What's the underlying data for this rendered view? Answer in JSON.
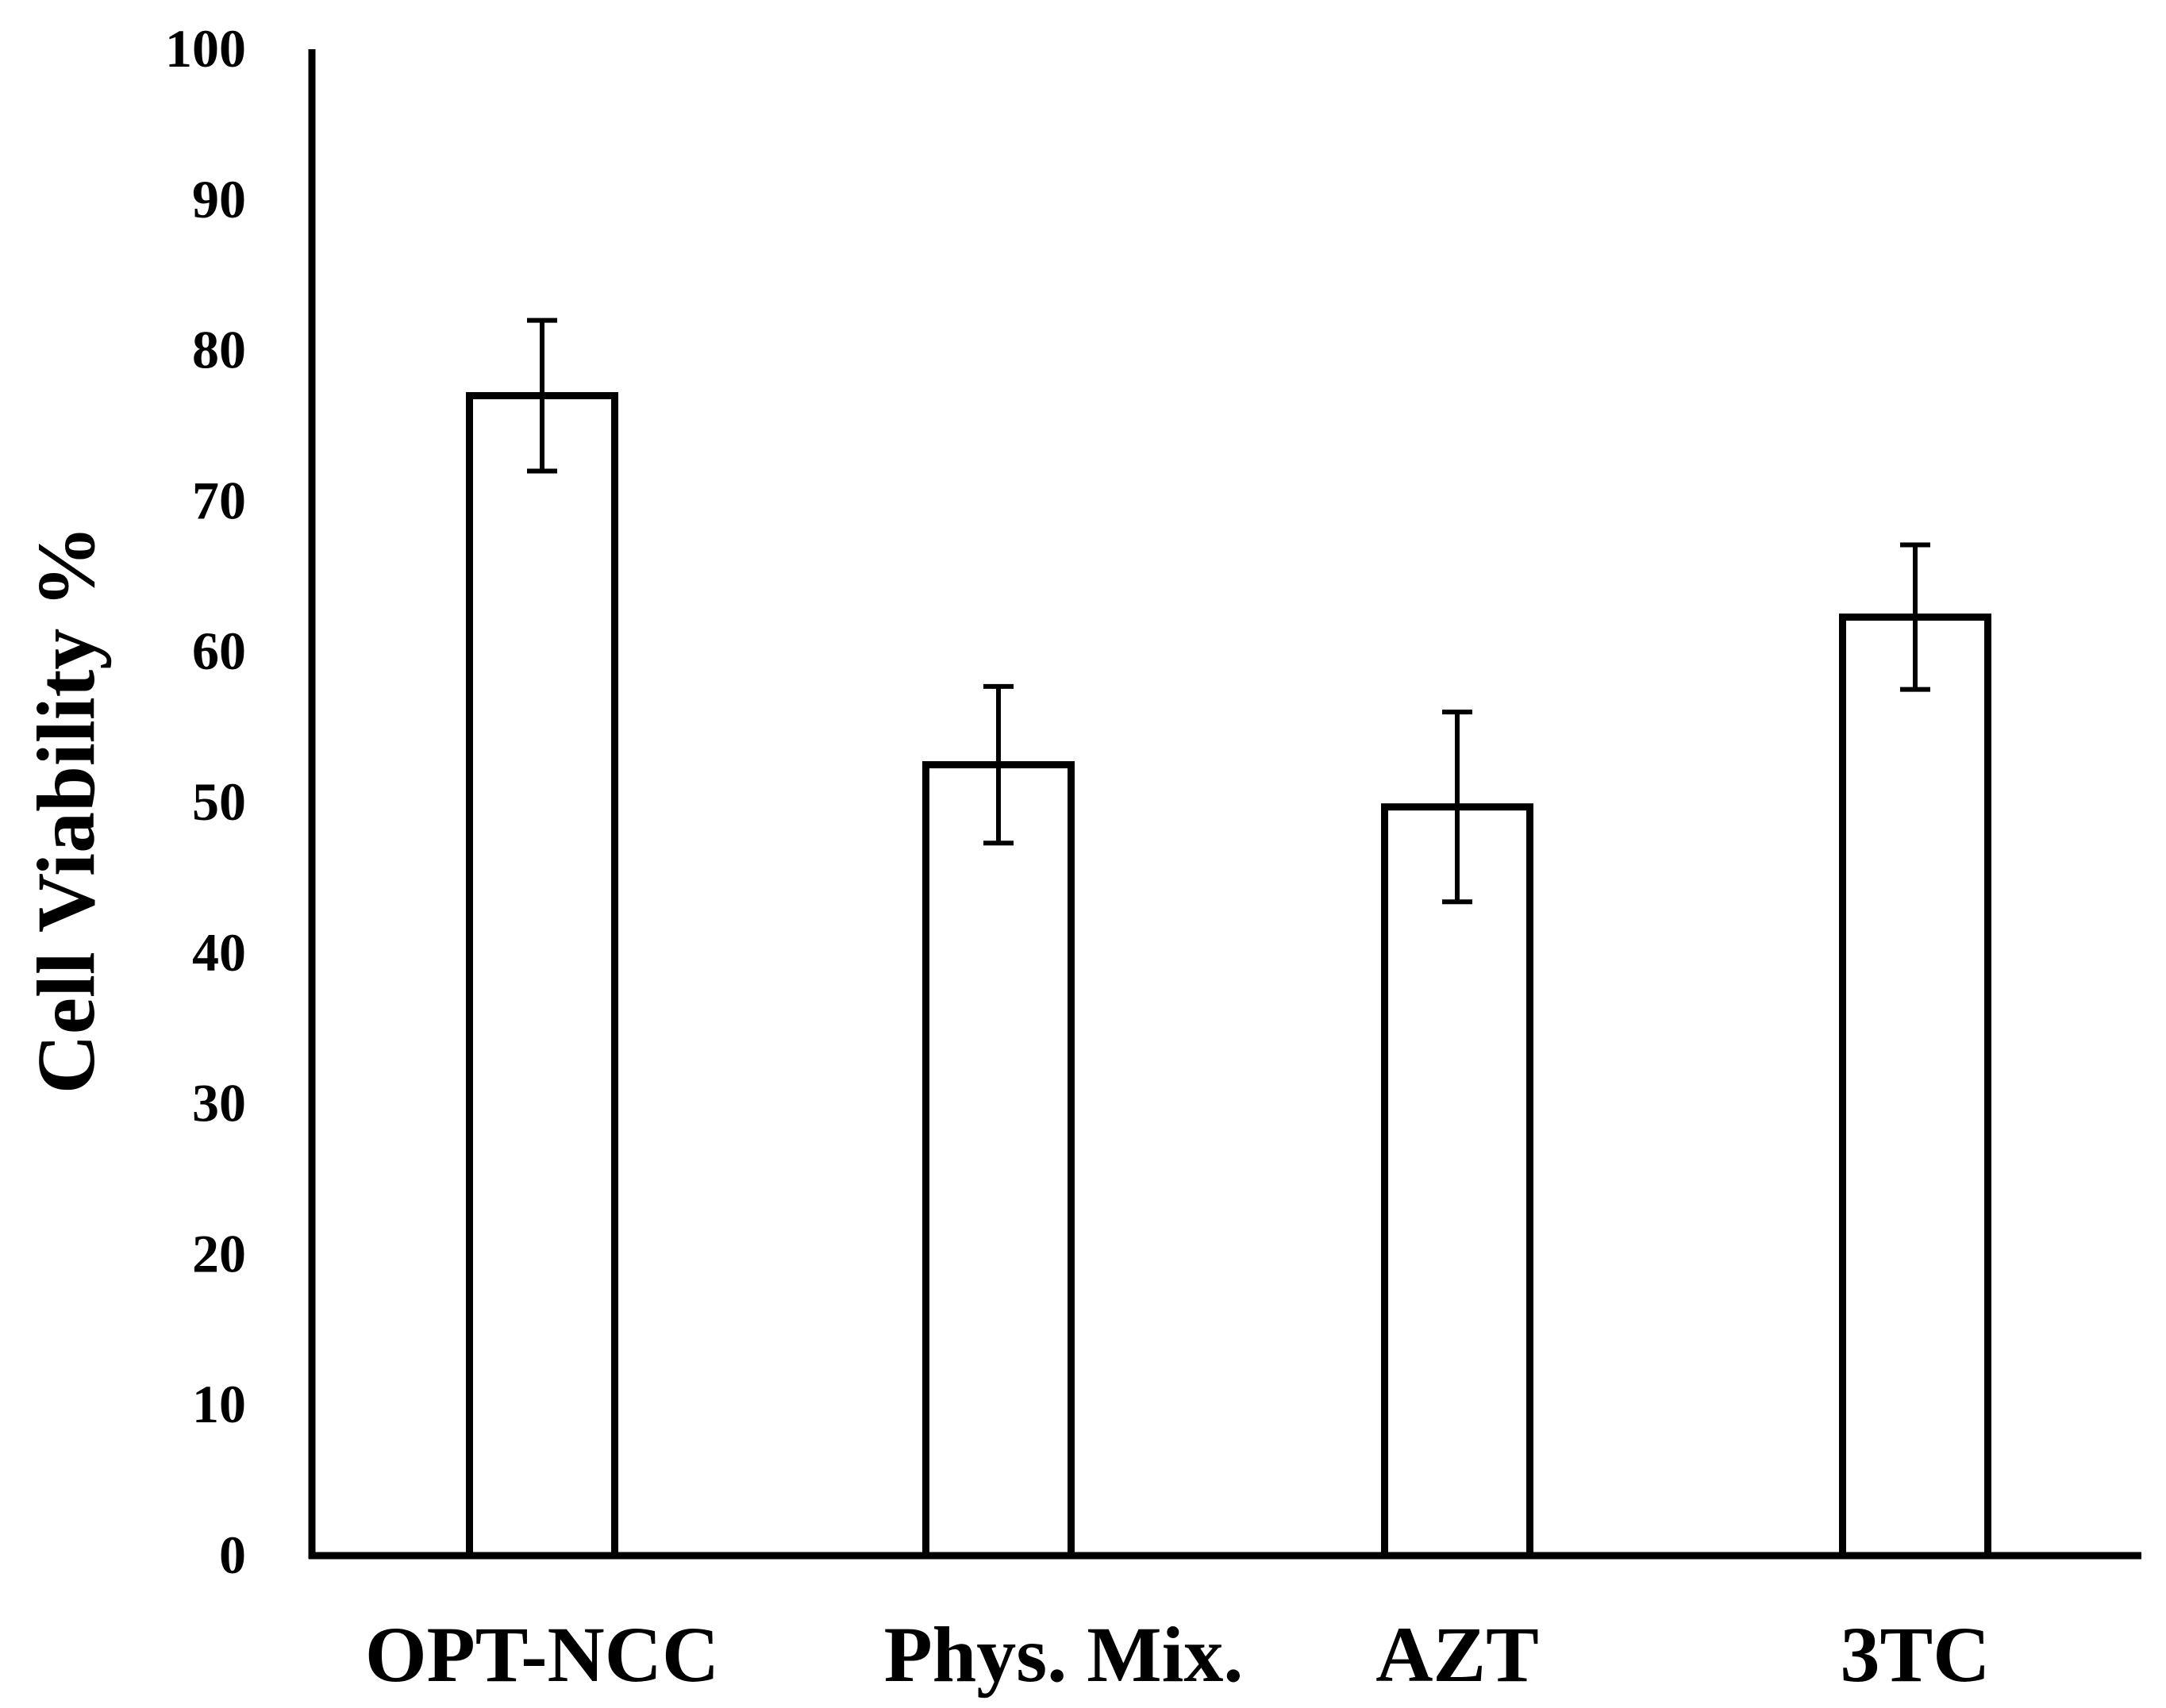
{
  "chart_data": {
    "type": "bar",
    "title": "",
    "xlabel": "",
    "ylabel": "Cell Viability %",
    "ylim": [
      0,
      100
    ],
    "yticks": [
      "0",
      "10",
      "20",
      "30",
      "40",
      "50",
      "60",
      "70",
      "80",
      "90",
      "100"
    ],
    "grid": false,
    "categories": [
      "OPT-NCC",
      "Phys. Mix.",
      "AZT",
      "3TC"
    ],
    "series": [
      {
        "name": "Cell Viability",
        "values": [
          77,
          52.5,
          49.7,
          62.3
        ],
        "error": [
          5,
          5.2,
          6.3,
          4.8
        ]
      }
    ],
    "colors": {
      "bar_fill": "#ffffff",
      "bar_stroke": "#000000",
      "axis": "#000000"
    }
  }
}
